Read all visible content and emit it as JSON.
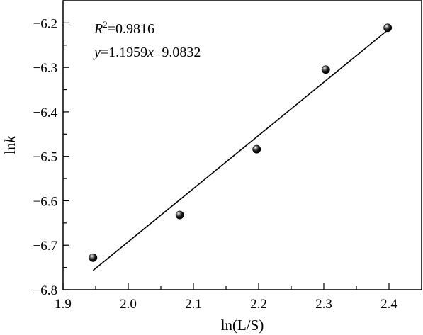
{
  "chart_data": {
    "type": "scatter",
    "x": [
      1.946,
      2.079,
      2.197,
      2.303,
      2.398
    ],
    "y": [
      -6.728,
      -6.632,
      -6.484,
      -6.305,
      -6.211
    ],
    "fit_line": {
      "x": [
        1.946,
        2.398
      ],
      "y": [
        -6.7568,
        -6.2162
      ]
    },
    "xlim": [
      1.9,
      2.45
    ],
    "ylim": [
      -6.8,
      -6.15
    ],
    "xticks": [
      1.9,
      2.0,
      2.1,
      2.2,
      2.3,
      2.4
    ],
    "yticks": [
      -6.8,
      -6.7,
      -6.6,
      -6.5,
      -6.4,
      -6.3,
      -6.2
    ],
    "xtick_labels": [
      "1.9",
      "2.0",
      "2.1",
      "2.2",
      "2.3",
      "2.4"
    ],
    "ytick_labels": [
      "−6.8",
      "−6.7",
      "−6.6",
      "−6.5",
      "−6.4",
      "−6.3",
      "−6.2"
    ],
    "xlabel": "ln(L/S)",
    "ylabel_plain": "ln",
    "ylabel_italic": "k",
    "annotations": {
      "r2_italic": "R",
      "r2_sup": "2",
      "r2_value": "=0.9816",
      "eq_y": "y",
      "eq_mid": "=1.1959",
      "eq_x": "x",
      "eq_end": "−9.0832"
    },
    "grid": false,
    "legend": "none"
  }
}
